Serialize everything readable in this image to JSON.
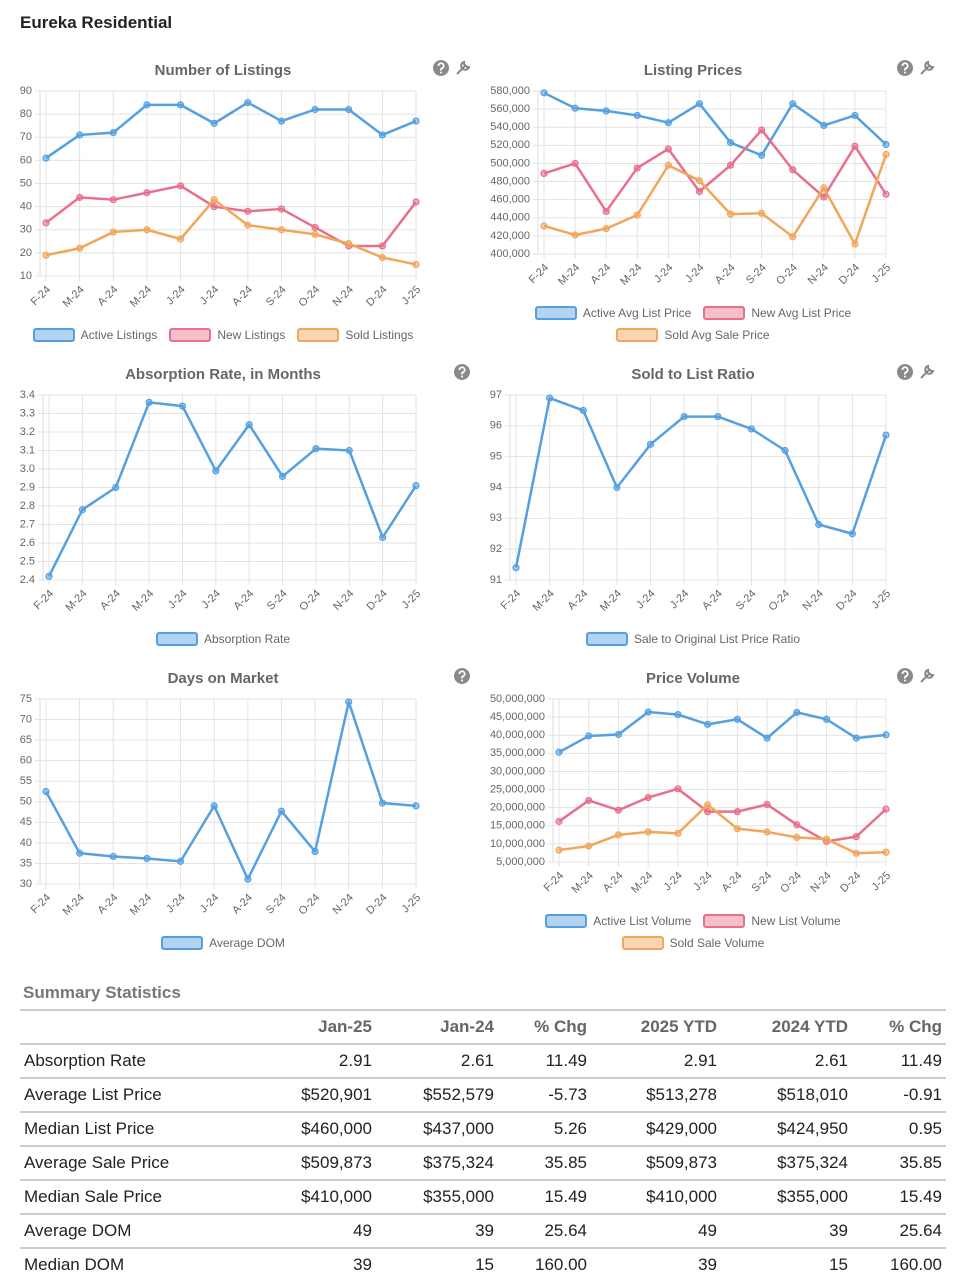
{
  "header": {
    "title": "Eureka Residential"
  },
  "chart_data": [
    {
      "type": "line",
      "title": "Number of Listings",
      "categories": [
        "F-24",
        "M-24",
        "A-24",
        "M-24",
        "J-24",
        "J-24",
        "A-24",
        "S-24",
        "O-24",
        "N-24",
        "D-24",
        "J-25"
      ],
      "ylim": [
        10,
        90
      ],
      "yticks": [
        10,
        20,
        30,
        40,
        50,
        60,
        70,
        80,
        90
      ],
      "grid": true,
      "series": [
        {
          "name": "Active Listings",
          "color": "#55a0e0",
          "values": [
            61,
            71,
            72,
            84,
            84,
            76,
            85,
            77,
            82,
            82,
            71,
            77
          ]
        },
        {
          "name": "New Listings",
          "color": "#e8708c",
          "values": [
            33,
            44,
            43,
            46,
            49,
            40,
            38,
            39,
            31,
            23,
            23,
            42
          ]
        },
        {
          "name": "Sold Listings",
          "color": "#f2a65a",
          "values": [
            19,
            22,
            29,
            30,
            26,
            43,
            32,
            30,
            28,
            24,
            18,
            15
          ]
        }
      ]
    },
    {
      "type": "line",
      "title": "Listing Prices",
      "categories": [
        "F-24",
        "M-24",
        "A-24",
        "M-24",
        "J-24",
        "J-24",
        "A-24",
        "S-24",
        "O-24",
        "N-24",
        "D-24",
        "J-25"
      ],
      "ylim": [
        400000,
        580000
      ],
      "yticks": [
        {
          "value": 400000,
          "label": "400,000"
        },
        {
          "value": 420000,
          "label": "420,000"
        },
        {
          "value": 440000,
          "label": "440,000"
        },
        {
          "value": 460000,
          "label": "460,000"
        },
        {
          "value": 480000,
          "label": "480,000"
        },
        {
          "value": 500000,
          "label": "500,000"
        },
        {
          "value": 520000,
          "label": "520,000"
        },
        {
          "value": 540000,
          "label": "540,000"
        },
        {
          "value": 560000,
          "label": "560,000"
        },
        {
          "value": 580000,
          "label": "580,000"
        }
      ],
      "grid": true,
      "series": [
        {
          "name": "Active Avg List Price",
          "color": "#55a0e0",
          "values": [
            578000,
            561000,
            558000,
            553000,
            545000,
            566000,
            523000,
            509000,
            566000,
            542000,
            553000,
            520901
          ]
        },
        {
          "name": "New Avg List Price",
          "color": "#e8708c",
          "values": [
            489000,
            500000,
            447000,
            495000,
            516000,
            469000,
            498000,
            537000,
            493000,
            463000,
            519000,
            466000
          ]
        },
        {
          "name": "Sold Avg Sale Price",
          "color": "#f2a65a",
          "values": [
            431000,
            421000,
            428000,
            443000,
            498000,
            481000,
            444000,
            445000,
            419000,
            473000,
            411000,
            509873
          ]
        }
      ]
    },
    {
      "type": "line",
      "title": "Absorption Rate, in Months",
      "categories": [
        "F-24",
        "M-24",
        "A-24",
        "M-24",
        "J-24",
        "J-24",
        "A-24",
        "S-24",
        "O-24",
        "N-24",
        "D-24",
        "J-25"
      ],
      "ylim": [
        2.4,
        3.4
      ],
      "yticks": [
        2.4,
        2.5,
        2.6,
        2.7,
        2.8,
        2.9,
        {
          "value": 3,
          "label": "3.0"
        },
        3.1,
        3.2,
        3.3,
        3.4
      ],
      "grid": true,
      "series": [
        {
          "name": "Absorption Rate",
          "color": "#55a0e0",
          "values": [
            2.42,
            2.78,
            2.9,
            3.36,
            3.34,
            2.99,
            3.24,
            2.96,
            3.11,
            3.1,
            2.63,
            2.91
          ]
        }
      ]
    },
    {
      "type": "line",
      "title": "Sold to List Ratio",
      "categories": [
        "F-24",
        "M-24",
        "A-24",
        "M-24",
        "J-24",
        "J-24",
        "A-24",
        "S-24",
        "O-24",
        "N-24",
        "D-24",
        "J-25"
      ],
      "ylim": [
        91,
        97
      ],
      "yticks": [
        91,
        92,
        93,
        94,
        95,
        96,
        97
      ],
      "grid": true,
      "series": [
        {
          "name": "Sale to Original List Price Ratio",
          "color": "#55a0e0",
          "values": [
            91.4,
            96.9,
            96.5,
            94.0,
            95.4,
            96.3,
            96.3,
            95.9,
            95.2,
            92.8,
            92.5,
            95.7
          ]
        }
      ]
    },
    {
      "type": "line",
      "title": "Days on Market",
      "categories": [
        "F-24",
        "M-24",
        "A-24",
        "M-24",
        "J-24",
        "J-24",
        "A-24",
        "S-24",
        "O-24",
        "N-24",
        "D-24",
        "J-25"
      ],
      "ylim": [
        30,
        75
      ],
      "yticks": [
        30,
        35,
        40,
        45,
        50,
        55,
        60,
        65,
        70,
        75
      ],
      "grid": true,
      "series": [
        {
          "name": "Average DOM",
          "color": "#55a0e0",
          "values": [
            52.5,
            37.5,
            36.7,
            36.2,
            35.5,
            49,
            31.2,
            47.7,
            37.9,
            74.3,
            49.7,
            49
          ]
        }
      ]
    },
    {
      "type": "line",
      "title": "Price Volume",
      "categories": [
        "F-24",
        "M-24",
        "A-24",
        "M-24",
        "J-24",
        "J-24",
        "A-24",
        "S-24",
        "O-24",
        "N-24",
        "D-24",
        "J-25"
      ],
      "ylim": [
        5000000,
        50000000
      ],
      "yticks": [
        {
          "value": 5000000,
          "label": "5,000,000"
        },
        {
          "value": 10000000,
          "label": "10,000,000"
        },
        {
          "value": 15000000,
          "label": "15,000,000"
        },
        {
          "value": 20000000,
          "label": "20,000,000"
        },
        {
          "value": 25000000,
          "label": "25,000,000"
        },
        {
          "value": 30000000,
          "label": "30,000,000"
        },
        {
          "value": 35000000,
          "label": "35,000,000"
        },
        {
          "value": 40000000,
          "label": "40,000,000"
        },
        {
          "value": 45000000,
          "label": "45,000,000"
        },
        {
          "value": 50000000,
          "label": "50,000,000"
        }
      ],
      "grid": true,
      "series": [
        {
          "name": "Active List Volume",
          "color": "#55a0e0",
          "values": [
            35300000,
            39800000,
            40200000,
            46400000,
            45700000,
            43000000,
            44400000,
            39200000,
            46300000,
            44400000,
            39200000,
            40100000
          ]
        },
        {
          "name": "New List Volume",
          "color": "#e8708c",
          "values": [
            16200000,
            22000000,
            19300000,
            22800000,
            25200000,
            18900000,
            18900000,
            20900000,
            15300000,
            10700000,
            12000000,
            19600000
          ]
        },
        {
          "name": "Sold Sale Volume",
          "color": "#f2a65a",
          "values": [
            8300000,
            9400000,
            12500000,
            13300000,
            12900000,
            20800000,
            14200000,
            13300000,
            11800000,
            11300000,
            7400000,
            7700000
          ]
        }
      ]
    }
  ],
  "table": {
    "title": "Summary Statistics",
    "columns": [
      "Jan-25",
      "Jan-24",
      "% Chg",
      "2025 YTD",
      "2024 YTD",
      "% Chg"
    ],
    "rows": [
      [
        "Absorption Rate",
        "2.91",
        "2.61",
        "11.49",
        "2.91",
        "2.61",
        "11.49"
      ],
      [
        "Average List Price",
        "$520,901",
        "$552,579",
        "-5.73",
        "$513,278",
        "$518,010",
        "-0.91"
      ],
      [
        "Median List Price",
        "$460,000",
        "$437,000",
        "5.26",
        "$429,000",
        "$424,950",
        "0.95"
      ],
      [
        "Average Sale Price",
        "$509,873",
        "$375,324",
        "35.85",
        "$509,873",
        "$375,324",
        "35.85"
      ],
      [
        "Median Sale Price",
        "$410,000",
        "$355,000",
        "15.49",
        "$410,000",
        "$355,000",
        "15.49"
      ],
      [
        "Average DOM",
        "49",
        "39",
        "25.64",
        "49",
        "39",
        "25.64"
      ],
      [
        "Median DOM",
        "39",
        "15",
        "160.00",
        "39",
        "15",
        "160.00"
      ]
    ]
  }
}
